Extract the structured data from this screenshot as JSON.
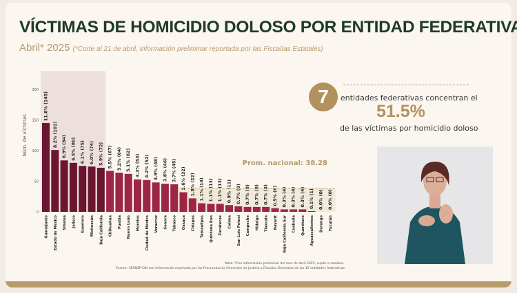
{
  "header": {
    "title": "VÍCTIMAS DE HOMICIDIO DOLOSO POR ENTIDAD FEDERATIVA",
    "period": "Abril* 2025",
    "period_note": "(*Corte al 21 de abril, información preliminar reportada por las Fiscalías Estatales)"
  },
  "highlight": {
    "count": "7",
    "line1": "entidades federativas concentran el",
    "percent": "51.5%",
    "line2": "de las víctimas por homicidio doloso"
  },
  "footer": {
    "note": "Nota: *Con información preliminar del mes de abril 2025, sujeto a cambios.",
    "source": "Fuente: SESNSP-CNI con información reportada por las Procuradurías Generales de Justicia o Fiscalías Generales de las 32 entidades federativas"
  },
  "colors": {
    "top": "#6b1531",
    "rest": "#9c2548",
    "title": "#1e3a2c",
    "gold": "#b3915f"
  },
  "chart_data": {
    "type": "bar",
    "ylabel": "Núm. de víctimas",
    "ylim": [
      0,
      200
    ],
    "yticks": [
      0,
      50,
      100,
      150,
      200
    ],
    "average": {
      "label": "Prom. nacional: 38.28",
      "value": 38.28
    },
    "highlighted_count": 7,
    "categories": [
      "Guanajuato",
      "Estado de México",
      "Sinaloa",
      "Jalisco",
      "Guerrero",
      "Michoacán",
      "Baja California",
      "Chihuahua",
      "Puebla",
      "Nuevo León",
      "Morelos",
      "Ciudad de México",
      "Veracruz",
      "Sonora",
      "Tabasco",
      "Oaxaca",
      "Chiapas",
      "Tamaulipas",
      "Quintana Roo",
      "Zacatecas",
      "Colima",
      "San Luis Potosí",
      "Campeche",
      "Hidalgo",
      "Tlaxcala",
      "Nayarit",
      "Baja California Sur",
      "Coahuila",
      "Querétaro",
      "Aguascalientes",
      "Durango",
      "Yucatán"
    ],
    "values": [
      145,
      101,
      84,
      80,
      75,
      74,
      72,
      67,
      64,
      62,
      53,
      52,
      48,
      46,
      45,
      32,
      22,
      14,
      13,
      13,
      11,
      9,
      8,
      8,
      8,
      6,
      4,
      4,
      4,
      1,
      0,
      0
    ],
    "percents": [
      "11.8%",
      "8.2%",
      "6.9%",
      "6.5%",
      "6.1%",
      "6.0%",
      "5.9%",
      "5.5%",
      "5.2%",
      "5.1%",
      "4.3%",
      "4.2%",
      "3.9%",
      "3.8%",
      "3.7%",
      "2.6%",
      "1.8%",
      "1.1%",
      "1.1%",
      "1.1%",
      "0.9%",
      "0.7%",
      "0.7%",
      "0.7%",
      "0.7%",
      "0.5%",
      "0.3%",
      "0.3%",
      "0.3%",
      "0.1%",
      "0.0%",
      "0.0%"
    ]
  }
}
